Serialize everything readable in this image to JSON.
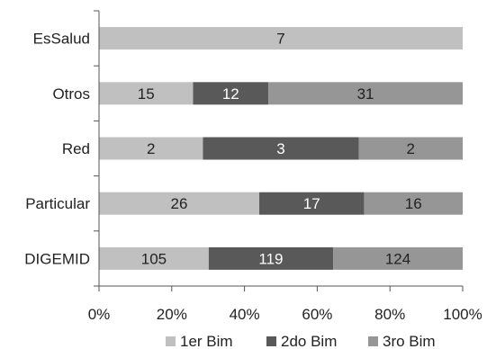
{
  "chart_data": {
    "type": "bar",
    "orientation": "horizontal",
    "stacking": "percent",
    "categories": [
      "EsSalud",
      "Otros",
      "Red",
      "Particular",
      "DIGEMID"
    ],
    "series": [
      {
        "name": "1er Bim",
        "values": [
          7,
          15,
          2,
          26,
          105
        ],
        "color": "#c0c0c0",
        "label_color": "#222222"
      },
      {
        "name": "2do Bim",
        "values": [
          0,
          12,
          3,
          17,
          119
        ],
        "color": "#595959",
        "label_color": "#ffffff"
      },
      {
        "name": "3ro Bim",
        "values": [
          0,
          31,
          2,
          16,
          124
        ],
        "color": "#969696",
        "label_color": "#222222"
      }
    ],
    "x_ticks": [
      "0%",
      "20%",
      "40%",
      "60%",
      "80%",
      "100%"
    ],
    "xlim": [
      0,
      100
    ],
    "legend_position": "bottom",
    "grid": false
  }
}
